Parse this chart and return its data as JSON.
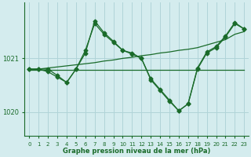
{
  "title": "Graphe pression niveau de la mer (hPa)",
  "bg_color": "#d4ecee",
  "grid_color": "#b0d4d8",
  "line_color": "#1a6b2a",
  "x_labels": [
    "0",
    "1",
    "2",
    "3",
    "4",
    "5",
    "6",
    "7",
    "8",
    "9",
    "10",
    "11",
    "12",
    "13",
    "14",
    "15",
    "16",
    "17",
    "18",
    "19",
    "20",
    "21",
    "22",
    "23"
  ],
  "ylim": [
    1019.55,
    1022.05
  ],
  "yticks": [
    1020,
    1021
  ],
  "series_main": [
    1020.8,
    1020.8,
    1020.75,
    1020.65,
    1020.55,
    1020.8,
    1021.15,
    1021.65,
    1021.45,
    1021.3,
    1021.15,
    1021.1,
    1021.0,
    1020.6,
    1020.4,
    1020.2,
    1020.02,
    1020.15,
    1020.8,
    1021.1,
    1021.2,
    1021.4,
    1021.65,
    1021.55
  ],
  "series_secondary": [
    1020.8,
    1020.8,
    1020.8,
    1020.68,
    1020.55,
    1020.8,
    1021.1,
    1021.7,
    1021.48,
    1021.32,
    1021.15,
    1021.08,
    1021.0,
    1020.62,
    1020.42,
    1020.22,
    1020.02,
    1020.15,
    1020.82,
    1021.12,
    1021.22,
    1021.42,
    1021.67,
    1021.55
  ],
  "series_flat": [
    1020.78,
    1020.78,
    1020.78,
    1020.78,
    1020.78,
    1020.78,
    1020.78,
    1020.78,
    1020.78,
    1020.78,
    1020.78,
    1020.78,
    1020.78,
    1020.78,
    1020.78,
    1020.78,
    1020.78,
    1020.78,
    1020.78,
    1020.78,
    1020.78,
    1020.78,
    1020.78,
    1020.78
  ],
  "series_trend": [
    1020.78,
    1020.8,
    1020.82,
    1020.84,
    1020.86,
    1020.88,
    1020.9,
    1020.92,
    1020.95,
    1020.97,
    1021.0,
    1021.02,
    1021.05,
    1021.07,
    1021.1,
    1021.12,
    1021.15,
    1021.17,
    1021.2,
    1021.25,
    1021.3,
    1021.35,
    1021.45,
    1021.5
  ]
}
